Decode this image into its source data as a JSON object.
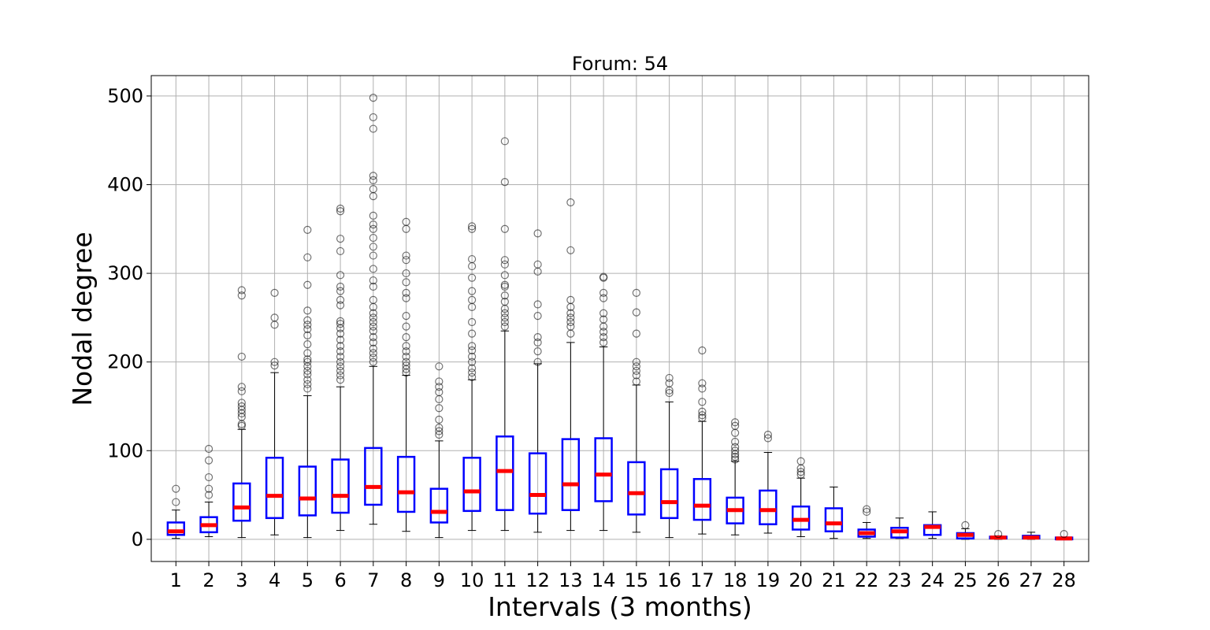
{
  "chart_data": {
    "type": "box",
    "title": "Forum: 54",
    "xlabel": "Intervals (3 months)",
    "ylabel": "Nodal degree",
    "ylim": [
      -25,
      523
    ],
    "yticks": [
      0,
      100,
      200,
      300,
      400,
      500
    ],
    "grid": true,
    "colors": {
      "box": "#0000ff",
      "median": "#ff0000",
      "whisker": "#000000",
      "flier": "#000000"
    },
    "boxes": [
      {
        "x": "1",
        "whislo": 1,
        "q1": 5,
        "med": 9,
        "q3": 19,
        "whishi": 33,
        "fliers": [
          42,
          57
        ]
      },
      {
        "x": "2",
        "whislo": 3,
        "q1": 8,
        "med": 16,
        "q3": 25,
        "whishi": 42,
        "fliers": [
          50,
          57,
          70,
          89,
          102
        ]
      },
      {
        "x": "3",
        "whislo": 2,
        "q1": 21,
        "med": 36,
        "q3": 63,
        "whishi": 124,
        "fliers": [
          128,
          130,
          138,
          142,
          146,
          150,
          154,
          167,
          172,
          206,
          275,
          281
        ]
      },
      {
        "x": "4",
        "whislo": 5,
        "q1": 24,
        "med": 49,
        "q3": 92,
        "whishi": 188,
        "fliers": [
          196,
          200,
          242,
          250,
          278
        ]
      },
      {
        "x": "5",
        "whislo": 2,
        "q1": 27,
        "med": 46,
        "q3": 82,
        "whishi": 162,
        "fliers": [
          170,
          175,
          180,
          186,
          190,
          195,
          200,
          203,
          210,
          220,
          230,
          237,
          242,
          247,
          258,
          287,
          318,
          349
        ]
      },
      {
        "x": "6",
        "whislo": 10,
        "q1": 30,
        "med": 49,
        "q3": 90,
        "whishi": 172,
        "fliers": [
          180,
          185,
          190,
          195,
          200,
          206,
          212,
          218,
          225,
          232,
          238,
          243,
          246,
          264,
          270,
          280,
          285,
          298,
          325,
          339,
          370,
          373
        ]
      },
      {
        "x": "7",
        "whislo": 17,
        "q1": 39,
        "med": 59,
        "q3": 103,
        "whishi": 195,
        "fliers": [
          200,
          205,
          210,
          215,
          222,
          228,
          235,
          240,
          245,
          250,
          255,
          262,
          270,
          285,
          292,
          305,
          320,
          330,
          340,
          350,
          355,
          365,
          387,
          395,
          405,
          410,
          463,
          476,
          498
        ]
      },
      {
        "x": "8",
        "whislo": 9,
        "q1": 31,
        "med": 53,
        "q3": 93,
        "whishi": 185,
        "fliers": [
          188,
          192,
          196,
          200,
          206,
          212,
          218,
          228,
          240,
          252,
          272,
          278,
          290,
          300,
          315,
          320,
          350,
          358
        ]
      },
      {
        "x": "9",
        "whislo": 2,
        "q1": 19,
        "med": 31,
        "q3": 57,
        "whishi": 111,
        "fliers": [
          118,
          122,
          126,
          135,
          148,
          158,
          166,
          172,
          178,
          195
        ]
      },
      {
        "x": "10",
        "whislo": 10,
        "q1": 32,
        "med": 54,
        "q3": 92,
        "whishi": 180,
        "fliers": [
          183,
          188,
          193,
          200,
          206,
          213,
          218,
          232,
          245,
          262,
          270,
          280,
          295,
          308,
          316,
          350,
          353
        ]
      },
      {
        "x": "11",
        "whislo": 10,
        "q1": 33,
        "med": 77,
        "q3": 116,
        "whishi": 235,
        "fliers": [
          240,
          245,
          250,
          255,
          260,
          268,
          275,
          285,
          287,
          298,
          310,
          315,
          350,
          403,
          449
        ]
      },
      {
        "x": "12",
        "whislo": 8,
        "q1": 29,
        "med": 50,
        "q3": 97,
        "whishi": 198,
        "fliers": [
          200,
          212,
          222,
          228,
          252,
          265,
          302,
          310,
          345
        ]
      },
      {
        "x": "13",
        "whislo": 10,
        "q1": 33,
        "med": 62,
        "q3": 113,
        "whishi": 222,
        "fliers": [
          232,
          240,
          245,
          250,
          255,
          262,
          270,
          326,
          380
        ]
      },
      {
        "x": "14",
        "whislo": 10,
        "q1": 43,
        "med": 73,
        "q3": 114,
        "whishi": 217,
        "fliers": [
          222,
          228,
          234,
          240,
          248,
          255,
          272,
          278,
          295,
          296
        ]
      },
      {
        "x": "15",
        "whislo": 8,
        "q1": 28,
        "med": 52,
        "q3": 87,
        "whishi": 174,
        "fliers": [
          178,
          185,
          190,
          195,
          200,
          232,
          256,
          278
        ]
      },
      {
        "x": "16",
        "whislo": 2,
        "q1": 24,
        "med": 42,
        "q3": 79,
        "whishi": 155,
        "fliers": [
          165,
          168,
          176,
          182
        ]
      },
      {
        "x": "17",
        "whislo": 6,
        "q1": 22,
        "med": 38,
        "q3": 68,
        "whishi": 133,
        "fliers": [
          137,
          140,
          144,
          155,
          170,
          176,
          213
        ]
      },
      {
        "x": "18",
        "whislo": 5,
        "q1": 18,
        "med": 33,
        "q3": 47,
        "whishi": 88,
        "fliers": [
          90,
          93,
          96,
          100,
          104,
          110,
          120,
          128,
          132
        ]
      },
      {
        "x": "19",
        "whislo": 7,
        "q1": 17,
        "med": 33,
        "q3": 55,
        "whishi": 98,
        "fliers": [
          114,
          118
        ]
      },
      {
        "x": "20",
        "whislo": 3,
        "q1": 11,
        "med": 22,
        "q3": 37,
        "whishi": 69,
        "fliers": [
          73,
          76,
          80,
          88
        ]
      },
      {
        "x": "21",
        "whislo": 1,
        "q1": 9,
        "med": 18,
        "q3": 35,
        "whishi": 59,
        "fliers": []
      },
      {
        "x": "22",
        "whislo": 1,
        "q1": 3,
        "med": 7,
        "q3": 11,
        "whishi": 19,
        "fliers": [
          31,
          34
        ]
      },
      {
        "x": "23",
        "whislo": 1,
        "q1": 2,
        "med": 9,
        "q3": 13,
        "whishi": 24,
        "fliers": []
      },
      {
        "x": "24",
        "whislo": 1,
        "q1": 5,
        "med": 14,
        "q3": 16,
        "whishi": 31,
        "fliers": []
      },
      {
        "x": "25",
        "whislo": 0,
        "q1": 1,
        "med": 5,
        "q3": 7,
        "whishi": 12,
        "fliers": [
          16
        ]
      },
      {
        "x": "26",
        "whislo": 0,
        "q1": 1,
        "med": 2,
        "q3": 3,
        "whishi": 4,
        "fliers": [
          6
        ]
      },
      {
        "x": "27",
        "whislo": 0,
        "q1": 1,
        "med": 2,
        "q3": 4,
        "whishi": 8,
        "fliers": []
      },
      {
        "x": "28",
        "whislo": 0,
        "q1": 0,
        "med": 1,
        "q3": 2,
        "whishi": 2,
        "fliers": [
          6
        ]
      }
    ]
  }
}
